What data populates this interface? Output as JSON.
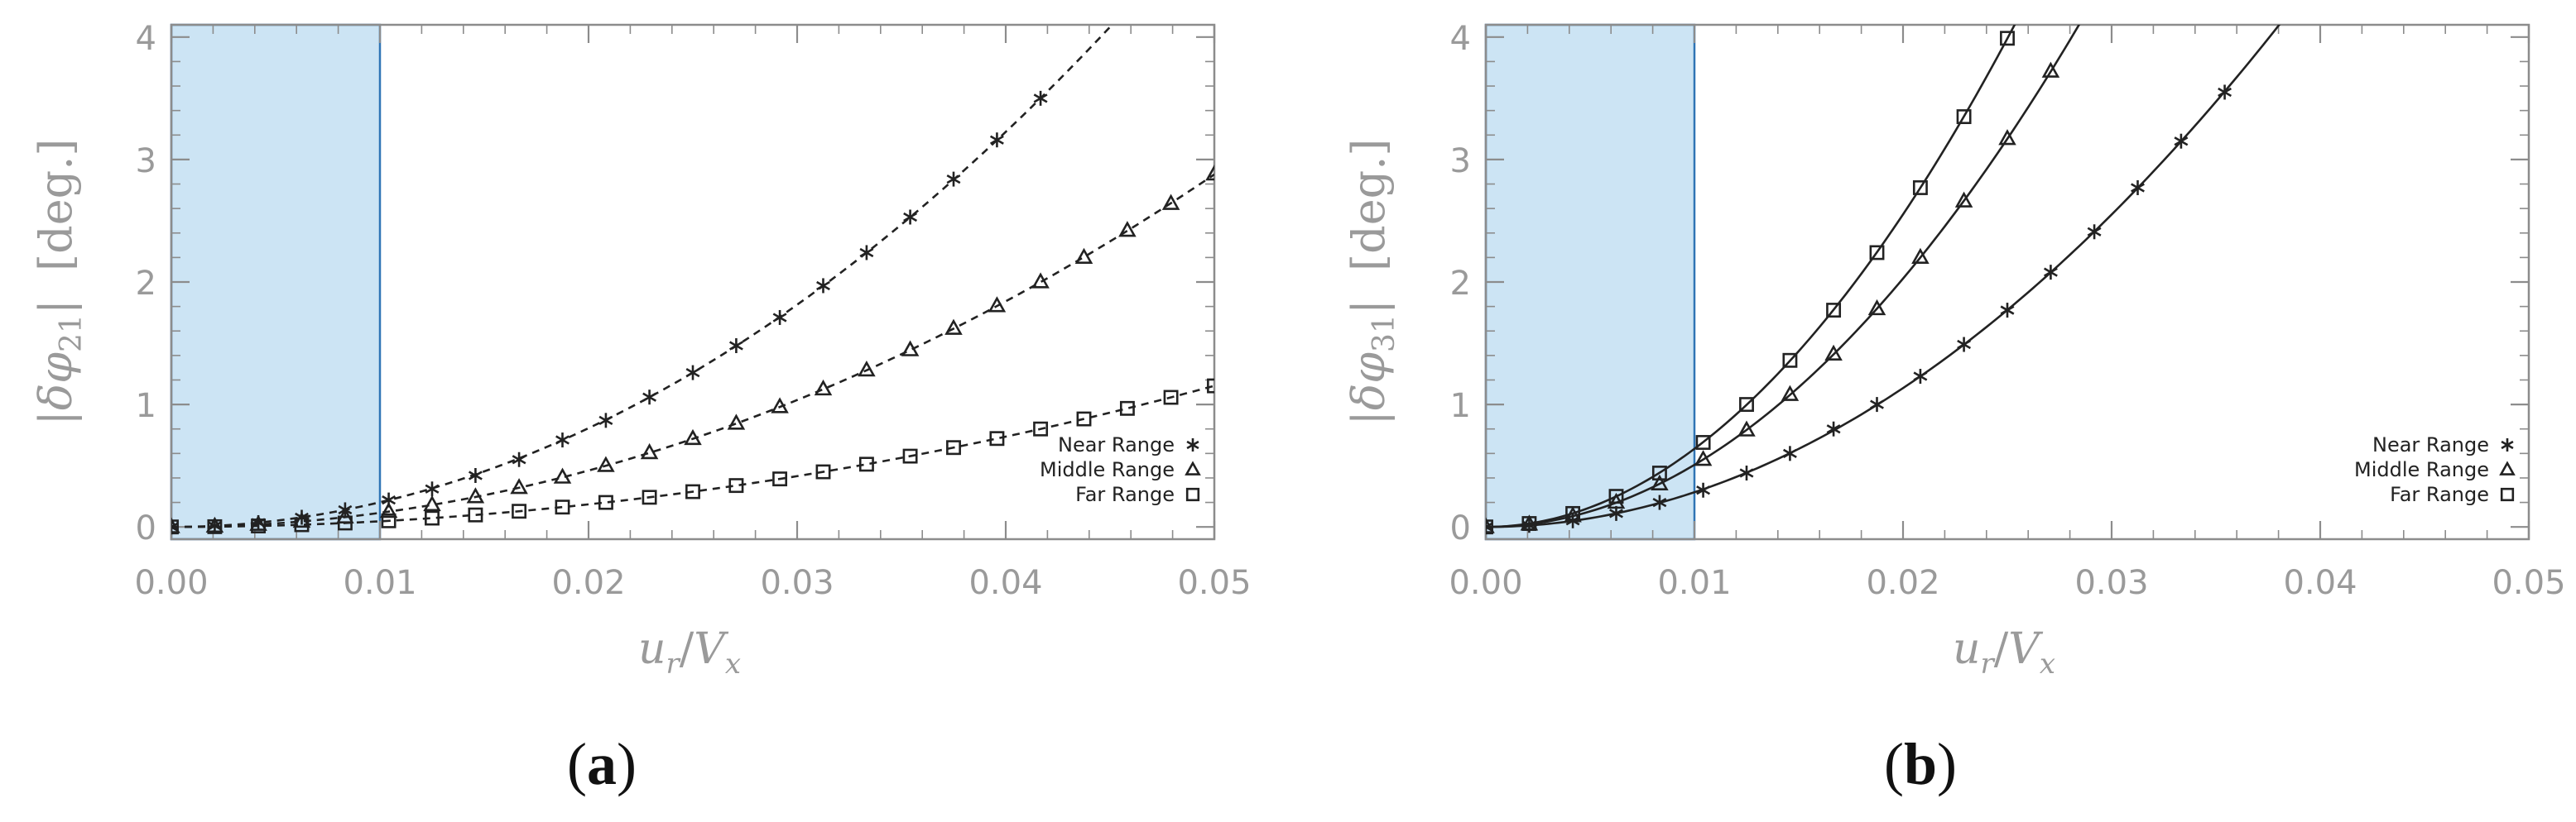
{
  "colors": {
    "shade_fill": "#cce4f4",
    "shade_stroke": "#2f74b5",
    "axis": "#8c8c8c",
    "curve": "#222222",
    "tick_text": "#9a9a9a"
  },
  "chart_data": [
    {
      "type": "line",
      "panel_label": "(a)",
      "panel_letter": "a",
      "ylabel_delta": "δφ",
      "ylabel_sub": "21",
      "ylabel_units": "[deg.]",
      "xlabel_u": "u",
      "xlabel_u_sub": "r",
      "xlabel_v": "V",
      "xlabel_v_sub": "x",
      "xlim": [
        0,
        0.05
      ],
      "ylim": [
        -0.1,
        4.1
      ],
      "x_ticks": [
        "0.00",
        "0.01",
        "0.02",
        "0.03",
        "0.04",
        "0.05"
      ],
      "y_ticks": [
        "0",
        "1",
        "2",
        "3",
        "4"
      ],
      "shaded_region": [
        0,
        0.01
      ],
      "line_style": "dashed",
      "legend_placement": "lower-right",
      "series": [
        {
          "name": "Near Range",
          "marker": "asterisk",
          "x": [
            0.0,
            0.00208,
            0.00417,
            0.00625,
            0.00833,
            0.01042,
            0.0125,
            0.01458,
            0.01667,
            0.01875,
            0.02083,
            0.02292,
            0.025,
            0.02708,
            0.02917,
            0.03125,
            0.03333,
            0.03542,
            0.0375,
            0.03958,
            0.04167
          ],
          "y": [
            0.0,
            0.009,
            0.035,
            0.079,
            0.14,
            0.22,
            0.31,
            0.42,
            0.55,
            0.71,
            0.87,
            1.06,
            1.26,
            1.48,
            1.71,
            1.97,
            2.24,
            2.53,
            2.84,
            3.16,
            3.5
          ]
        },
        {
          "name": "Middle Range",
          "marker": "triangle",
          "x": [
            0.0,
            0.00208,
            0.00417,
            0.00625,
            0.00833,
            0.01042,
            0.0125,
            0.01458,
            0.01667,
            0.01875,
            0.02083,
            0.02292,
            0.025,
            0.02708,
            0.02917,
            0.03125,
            0.03333,
            0.03542,
            0.0375,
            0.03958,
            0.04167,
            0.04375,
            0.04583,
            0.04792,
            0.05
          ],
          "y": [
            0.0,
            0.005,
            0.02,
            0.045,
            0.08,
            0.125,
            0.18,
            0.245,
            0.32,
            0.405,
            0.5,
            0.605,
            0.72,
            0.845,
            0.98,
            1.125,
            1.28,
            1.445,
            1.62,
            1.805,
            2.0,
            2.2,
            2.42,
            2.64,
            2.88
          ]
        },
        {
          "name": "Far Range",
          "marker": "square",
          "x": [
            0.0,
            0.00208,
            0.00417,
            0.00625,
            0.00833,
            0.01042,
            0.0125,
            0.01458,
            0.01667,
            0.01875,
            0.02083,
            0.02292,
            0.025,
            0.02708,
            0.02917,
            0.03125,
            0.03333,
            0.03542,
            0.0375,
            0.03958,
            0.04167,
            0.04375,
            0.04583,
            0.04792,
            0.05
          ],
          "y": [
            0.0,
            0.002,
            0.008,
            0.018,
            0.032,
            0.05,
            0.072,
            0.098,
            0.128,
            0.162,
            0.2,
            0.242,
            0.288,
            0.338,
            0.392,
            0.45,
            0.512,
            0.578,
            0.648,
            0.722,
            0.8,
            0.882,
            0.968,
            1.058,
            1.152
          ]
        }
      ]
    },
    {
      "type": "line",
      "panel_label": "(b)",
      "panel_letter": "b",
      "ylabel_delta": "δφ",
      "ylabel_sub": "31",
      "ylabel_units": "[deg.]",
      "xlabel_u": "u",
      "xlabel_u_sub": "r",
      "xlabel_v": "V",
      "xlabel_v_sub": "x",
      "xlim": [
        0,
        0.05
      ],
      "ylim": [
        -0.1,
        4.1
      ],
      "x_ticks": [
        "0.00",
        "0.01",
        "0.02",
        "0.03",
        "0.04",
        "0.05"
      ],
      "y_ticks": [
        "0",
        "1",
        "2",
        "3",
        "4"
      ],
      "shaded_region": [
        0,
        0.01
      ],
      "line_style": "solid",
      "legend_placement": "lower-right",
      "series": [
        {
          "name": "Near Range",
          "marker": "asterisk",
          "x": [
            0.0,
            0.00208,
            0.00417,
            0.00625,
            0.00833,
            0.01042,
            0.0125,
            0.01458,
            0.01667,
            0.01875,
            0.02083,
            0.02292,
            0.025,
            0.02708,
            0.02917,
            0.03125,
            0.03333,
            0.03542
          ],
          "y": [
            0.0,
            0.013,
            0.05,
            0.11,
            0.2,
            0.3,
            0.44,
            0.6,
            0.8,
            1.0,
            1.23,
            1.49,
            1.77,
            2.08,
            2.41,
            2.77,
            3.15,
            3.55
          ]
        },
        {
          "name": "Middle Range",
          "marker": "triangle",
          "x": [
            0.0,
            0.00208,
            0.00417,
            0.00625,
            0.00833,
            0.01042,
            0.0125,
            0.01458,
            0.01667,
            0.01875,
            0.02083,
            0.02292,
            0.025,
            0.02708
          ],
          "y": [
            0.0,
            0.022,
            0.09,
            0.2,
            0.35,
            0.55,
            0.79,
            1.08,
            1.41,
            1.78,
            2.2,
            2.66,
            3.17,
            3.72
          ]
        },
        {
          "name": "Far Range",
          "marker": "square",
          "x": [
            0.0,
            0.00208,
            0.00417,
            0.00625,
            0.00833,
            0.01042,
            0.0125,
            0.01458,
            0.01667,
            0.01875,
            0.02083,
            0.02292,
            0.025
          ],
          "y": [
            0.0,
            0.028,
            0.11,
            0.25,
            0.44,
            0.69,
            1.0,
            1.36,
            1.77,
            2.24,
            2.77,
            3.35,
            3.99
          ]
        }
      ]
    }
  ]
}
